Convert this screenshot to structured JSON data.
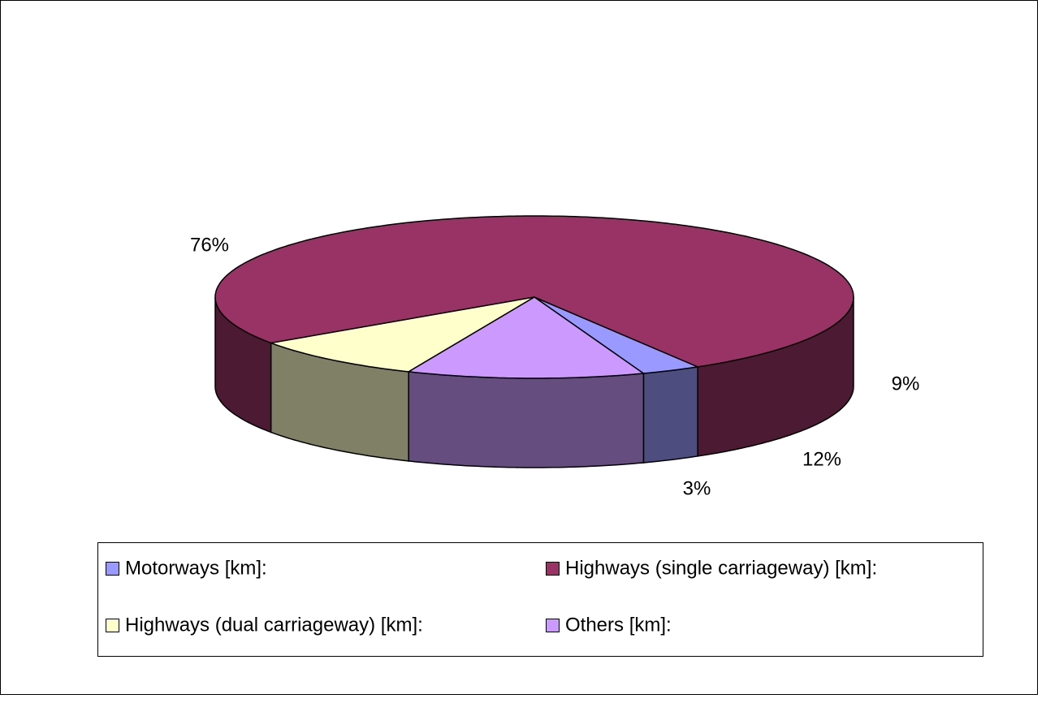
{
  "chart_data": {
    "type": "pie",
    "categories": [
      "Motorways [km]:",
      "Highways (single carriageway) [km]:",
      "Highways (dual carriageway) [km]:",
      "Others [km]:"
    ],
    "values": [
      3,
      76,
      9,
      12
    ],
    "value_labels": [
      "3%",
      "76%",
      "9%",
      "12%"
    ],
    "colors": [
      "#9999ff",
      "#993366",
      "#ffffcc",
      "#cc99ff"
    ],
    "side_colors": [
      "#4d4d80",
      "#4d1a33",
      "#808066",
      "#664d80"
    ]
  }
}
